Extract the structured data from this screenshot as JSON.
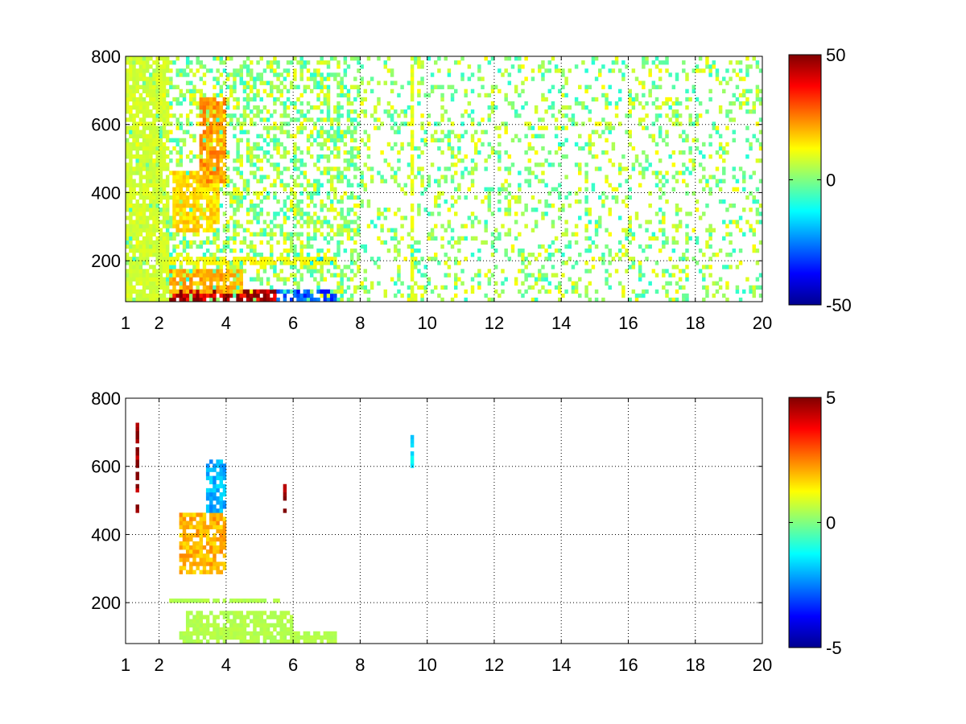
{
  "chart_data": [
    {
      "type": "heatmap",
      "title": "",
      "xlabel": "",
      "ylabel": "",
      "xlim": [
        1,
        20
      ],
      "ylim": [
        80,
        800
      ],
      "xticks": [
        1,
        2,
        4,
        6,
        8,
        10,
        12,
        14,
        16,
        18,
        20
      ],
      "xtick_labels": [
        "1",
        "2",
        "4",
        "6",
        "8",
        "10",
        "12",
        "14",
        "16",
        "18",
        "20"
      ],
      "yticks": [
        200,
        400,
        600,
        800
      ],
      "ytick_labels": [
        "200",
        "400",
        "600",
        "800"
      ],
      "grid": true,
      "colormap": "jet",
      "clim": [
        -50,
        50
      ],
      "colorbar_ticks": [
        50,
        0,
        -50
      ],
      "colorbar_labels": [
        "50",
        "0",
        "-50"
      ],
      "features": [
        {
          "x": [
            2.3,
            5.5
          ],
          "y": [
            80,
            110
          ],
          "value": 45
        },
        {
          "x": [
            5.5,
            7.3
          ],
          "y": [
            80,
            110
          ],
          "value": -30
        },
        {
          "x": [
            2.3,
            4.5
          ],
          "y": [
            110,
            180
          ],
          "value": 20
        },
        {
          "x": [
            6.2,
            7.3
          ],
          "y": [
            190,
            215
          ],
          "value": -15
        },
        {
          "x": [
            2.3,
            7.3
          ],
          "y": [
            190,
            215
          ],
          "value": 12
        },
        {
          "x": [
            2.4,
            3.8
          ],
          "y": [
            280,
            460
          ],
          "value": 16
        },
        {
          "x": [
            3.2,
            4.0
          ],
          "y": [
            430,
            680
          ],
          "value": 22
        },
        {
          "x": [
            9.5,
            9.6
          ],
          "y": [
            80,
            800
          ],
          "value": 10
        },
        {
          "x": [
            1.0,
            2.3
          ],
          "y": [
            80,
            800
          ],
          "value": 8
        }
      ]
    },
    {
      "type": "heatmap",
      "title": "",
      "xlabel": "",
      "ylabel": "",
      "xlim": [
        1,
        20
      ],
      "ylim": [
        80,
        800
      ],
      "xticks": [
        1,
        2,
        4,
        6,
        8,
        10,
        12,
        14,
        16,
        18,
        20
      ],
      "xtick_labels": [
        "1",
        "2",
        "4",
        "6",
        "8",
        "10",
        "12",
        "14",
        "16",
        "18",
        "20"
      ],
      "yticks": [
        200,
        400,
        600,
        800
      ],
      "ytick_labels": [
        "200",
        "400",
        "600",
        "800"
      ],
      "grid": true,
      "colormap": "jet",
      "clim": [
        -5,
        5
      ],
      "colorbar_ticks": [
        5,
        0,
        -5
      ],
      "colorbar_labels": [
        "5",
        "0",
        "-5"
      ],
      "features": [
        {
          "x": [
            2.6,
            7.3
          ],
          "y": [
            80,
            110
          ],
          "value": 0.5
        },
        {
          "x": [
            2.8,
            6.0
          ],
          "y": [
            110,
            170
          ],
          "value": 0.5
        },
        {
          "x": [
            2.3,
            6.0
          ],
          "y": [
            195,
            215
          ],
          "value": 0.5
        },
        {
          "x": [
            2.6,
            4.0
          ],
          "y": [
            290,
            460
          ],
          "value": 2
        },
        {
          "x": [
            3.4,
            4.0
          ],
          "y": [
            460,
            620
          ],
          "value": -2
        },
        {
          "x": [
            1.3,
            1.4
          ],
          "y": [
            460,
            740
          ],
          "value": 5
        },
        {
          "x": [
            5.7,
            5.8
          ],
          "y": [
            450,
            550
          ],
          "value": 5
        },
        {
          "x": [
            9.5,
            9.6
          ],
          "y": [
            600,
            700
          ],
          "value": -1.5
        }
      ]
    }
  ]
}
